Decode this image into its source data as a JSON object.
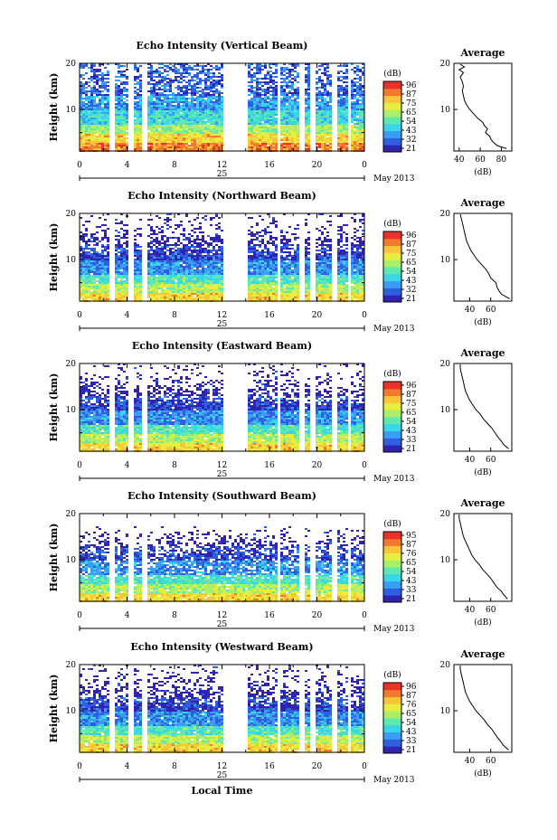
{
  "colorbar": {
    "unit": "(dB)",
    "colors": [
      "#3023b0",
      "#2f5ee0",
      "#3a9cf3",
      "#39d6e8",
      "#5fe8b0",
      "#a8ef6a",
      "#e8ee40",
      "#f7c53a",
      "#f27a2c",
      "#e8322a"
    ],
    "vertical_ticks": [
      "96",
      "87",
      "75",
      "65",
      "54",
      "43",
      "32",
      "21"
    ],
    "northward_ticks": [
      "96",
      "87",
      "75",
      "65",
      "54",
      "43",
      "32",
      "21"
    ],
    "eastward_ticks": [
      "96",
      "87",
      "75",
      "65",
      "54",
      "43",
      "33",
      "21"
    ],
    "southward_ticks": [
      "95",
      "87",
      "76",
      "65",
      "54",
      "43",
      "33",
      "21"
    ],
    "westward_ticks": [
      "96",
      "87",
      "76",
      "65",
      "54",
      "43",
      "33",
      "21"
    ]
  },
  "labels": {
    "ylabel": "Height (km)",
    "day": "25",
    "date": "May 2013",
    "avg_title": "Average",
    "avg_unit": "(dB)",
    "xlabel": "Local Time"
  },
  "chart_data": [
    {
      "type": "heatmap",
      "title": "Echo Intensity (Vertical Beam)",
      "x_ticks": [
        "0",
        "4",
        "8",
        "12",
        "16",
        "20",
        "0"
      ],
      "xlim": [
        0,
        24
      ],
      "y_ticks": [
        "20",
        "10"
      ],
      "ylim": [
        1,
        20
      ],
      "gaps": [
        [
          2.5,
          2.9
        ],
        [
          4.1,
          4.4
        ],
        [
          5.2,
          5.6
        ],
        [
          11.9,
          14.1
        ],
        [
          16.6,
          16.8
        ],
        [
          18.4,
          18.8
        ],
        [
          19.4,
          19.7
        ],
        [
          21.2,
          21.5
        ],
        [
          22.5,
          22.7
        ]
      ],
      "profile": {
        "x_ticks": [
          "40",
          "60",
          "80"
        ],
        "xlim": [
          35,
          90
        ],
        "heights": [
          1.5,
          2.2,
          3.0,
          3.6,
          4.2,
          5.0,
          5.8,
          6.5,
          7.3,
          8.0,
          9.0,
          10.0,
          11.0,
          12.0,
          13.0,
          14.0,
          15.0,
          16.0,
          17.0,
          18.0,
          18.6,
          19.2,
          19.8
        ],
        "values": [
          85,
          76,
          72,
          70,
          69,
          65,
          67,
          64,
          62,
          58,
          54,
          50,
          47,
          45,
          44,
          43,
          44,
          43,
          41,
          44,
          40,
          45,
          41
        ]
      }
    },
    {
      "type": "heatmap",
      "title": "Echo Intensity (Northward Beam)",
      "x_ticks": [
        "0",
        "4",
        "8",
        "12",
        "16",
        "20",
        "0"
      ],
      "xlim": [
        0,
        24
      ],
      "y_ticks": [
        "20",
        "10"
      ],
      "ylim": [
        1,
        20
      ],
      "gaps": [
        [
          2.5,
          2.9
        ],
        [
          4.1,
          4.4
        ],
        [
          5.2,
          5.6
        ],
        [
          11.9,
          14.1
        ],
        [
          16.6,
          16.8
        ],
        [
          18.4,
          18.8
        ],
        [
          19.4,
          19.7
        ],
        [
          21.2,
          21.5
        ],
        [
          22.5,
          22.7
        ]
      ],
      "profile": {
        "x_ticks": [
          "40",
          "60"
        ],
        "xlim": [
          25,
          80
        ],
        "heights": [
          1.5,
          2.5,
          3.2,
          4.0,
          5.0,
          6.0,
          7.0,
          8.0,
          9.0,
          10.0,
          11.0,
          12.0,
          13.0,
          14.0,
          15.0,
          16.0,
          17.0,
          18.0,
          19.0,
          19.8
        ],
        "values": [
          78,
          70,
          68,
          66,
          65,
          60,
          58,
          55,
          51,
          47,
          44,
          41,
          39,
          37,
          36,
          35,
          34,
          33,
          32,
          31
        ]
      }
    },
    {
      "type": "heatmap",
      "title": "Echo Intensity (Eastward Beam)",
      "x_ticks": [
        "0",
        "4",
        "8",
        "12",
        "16",
        "20",
        "0"
      ],
      "xlim": [
        0,
        24
      ],
      "y_ticks": [
        "20",
        "10"
      ],
      "ylim": [
        1,
        20
      ],
      "gaps": [
        [
          2.5,
          2.9
        ],
        [
          4.1,
          4.4
        ],
        [
          5.2,
          5.6
        ],
        [
          11.9,
          14.1
        ],
        [
          16.6,
          16.8
        ],
        [
          18.4,
          18.8
        ],
        [
          19.4,
          19.7
        ],
        [
          21.2,
          21.5
        ],
        [
          22.5,
          22.7
        ]
      ],
      "profile": {
        "x_ticks": [
          "40",
          "60"
        ],
        "xlim": [
          25,
          80
        ],
        "heights": [
          1.5,
          2.5,
          3.2,
          4.0,
          5.0,
          6.0,
          7.0,
          8.0,
          9.0,
          10.0,
          11.0,
          12.0,
          13.0,
          14.0,
          15.0,
          16.0,
          17.0,
          18.0,
          19.0,
          19.8
        ],
        "values": [
          77,
          72,
          70,
          67,
          64,
          61,
          57,
          53,
          50,
          46,
          43,
          40,
          38,
          36,
          35,
          34,
          33,
          32,
          31,
          31
        ]
      }
    },
    {
      "type": "heatmap",
      "title": "Echo Intensity (Southward Beam)",
      "x_ticks": [
        "0",
        "4",
        "8",
        "12",
        "16",
        "20",
        "0"
      ],
      "xlim": [
        0,
        24
      ],
      "y_ticks": [
        "20",
        "10"
      ],
      "ylim": [
        1,
        20
      ],
      "gaps": [
        [
          2.5,
          2.9
        ],
        [
          4.1,
          4.4
        ],
        [
          5.2,
          5.6
        ],
        [
          16.6,
          16.8
        ],
        [
          18.4,
          18.8
        ],
        [
          19.4,
          19.7
        ],
        [
          21.2,
          21.5
        ],
        [
          22.5,
          22.7
        ]
      ],
      "profile": {
        "x_ticks": [
          "40",
          "60"
        ],
        "xlim": [
          25,
          80
        ],
        "heights": [
          1.5,
          2.5,
          3.2,
          4.0,
          5.0,
          6.0,
          7.0,
          8.0,
          9.0,
          10.0,
          11.0,
          12.0,
          13.0,
          14.0,
          15.0,
          16.0,
          17.0,
          18.0,
          19.0,
          19.8
        ],
        "values": [
          76,
          72,
          70,
          66,
          63,
          60,
          56,
          52,
          49,
          45,
          42,
          40,
          38,
          36,
          34,
          33,
          32,
          31,
          30,
          30
        ]
      }
    },
    {
      "type": "heatmap",
      "title": "Echo Intensity (Westward Beam)",
      "x_ticks": [
        "0",
        "4",
        "8",
        "12",
        "16",
        "20",
        "0"
      ],
      "xlim": [
        0,
        24
      ],
      "y_ticks": [
        "20",
        "10"
      ],
      "ylim": [
        1,
        20
      ],
      "gaps": [
        [
          2.5,
          2.9
        ],
        [
          4.1,
          4.4
        ],
        [
          5.2,
          5.6
        ],
        [
          11.9,
          14.1
        ],
        [
          16.6,
          16.8
        ],
        [
          18.4,
          18.8
        ],
        [
          19.4,
          19.7
        ],
        [
          21.2,
          21.5
        ],
        [
          22.5,
          22.7
        ]
      ],
      "profile": {
        "x_ticks": [
          "40",
          "60"
        ],
        "xlim": [
          25,
          80
        ],
        "heights": [
          1.5,
          2.5,
          3.2,
          4.0,
          5.0,
          6.0,
          7.0,
          8.0,
          9.0,
          10.0,
          11.0,
          12.0,
          13.0,
          14.0,
          15.0,
          16.0,
          17.0,
          18.0,
          19.0,
          19.8
        ],
        "values": [
          77,
          72,
          70,
          67,
          64,
          61,
          57,
          54,
          50,
          46,
          43,
          40,
          38,
          36,
          35,
          34,
          33,
          32,
          31,
          31
        ]
      }
    }
  ]
}
